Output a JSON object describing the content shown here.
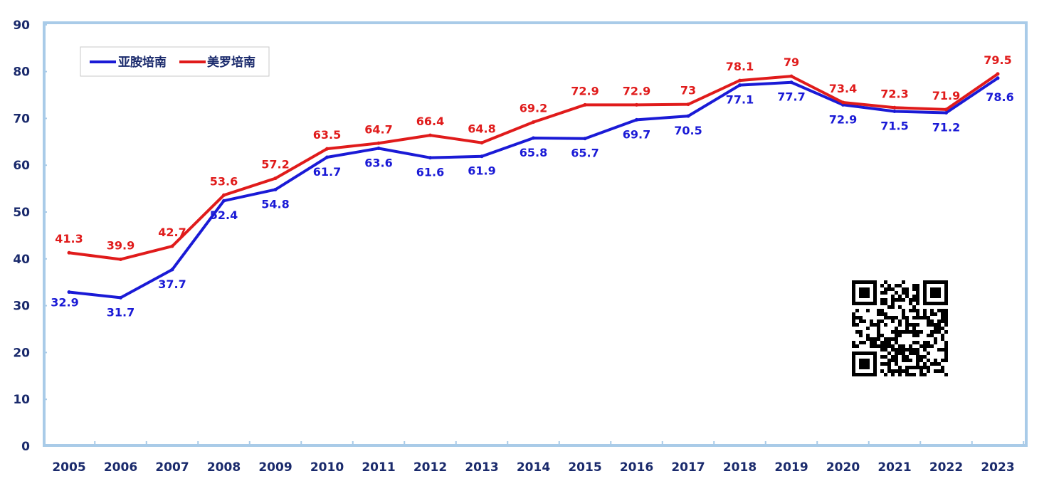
{
  "chart_data": {
    "type": "line",
    "title": "",
    "xlabel": "",
    "ylabel": "",
    "ylim": [
      0,
      90
    ],
    "yticks": [
      "0",
      "10",
      "20",
      "30",
      "40",
      "50",
      "60",
      "70",
      "80",
      "90"
    ],
    "categories": [
      "2005",
      "2006",
      "2007",
      "2008",
      "2009",
      "2010",
      "2011",
      "2012",
      "2013",
      "2014",
      "2015",
      "2016",
      "2017",
      "2018",
      "2019",
      "2020",
      "2021",
      "2022",
      "2023"
    ],
    "series": [
      {
        "name": "亚胺培南",
        "color": "#1a1ad6",
        "values": [
          32.9,
          31.7,
          37.7,
          52.4,
          54.8,
          61.7,
          63.6,
          61.6,
          61.9,
          65.8,
          65.7,
          69.7,
          70.5,
          77.1,
          77.7,
          72.9,
          71.5,
          71.2,
          78.6
        ],
        "labels": [
          "32.9",
          "31.7",
          "37.7",
          "52.4",
          "54.8",
          "61.7",
          "63.6",
          "61.6",
          "61.9",
          "65.8",
          "65.7",
          "69.7",
          "70.5",
          "77.1",
          "77.7",
          "72.9",
          "71.5",
          "71.2",
          "78.6"
        ]
      },
      {
        "name": "美罗培南",
        "color": "#e01b1b",
        "values": [
          41.3,
          39.9,
          42.7,
          53.6,
          57.2,
          63.5,
          64.7,
          66.4,
          64.8,
          69.2,
          72.9,
          72.9,
          73,
          78.1,
          79,
          73.4,
          72.3,
          71.9,
          79.5
        ],
        "labels": [
          "41.3",
          "39.9",
          "42.7",
          "53.6",
          "57.2",
          "63.5",
          "64.7",
          "66.4",
          "64.8",
          "69.2",
          "72.9",
          "72.9",
          "73",
          "78.1",
          "79",
          "73.4",
          "72.3",
          "71.9",
          "79.5"
        ]
      }
    ],
    "legend": "top-left",
    "grid": false
  },
  "qr_code": {
    "icon": "qr-code-icon"
  }
}
